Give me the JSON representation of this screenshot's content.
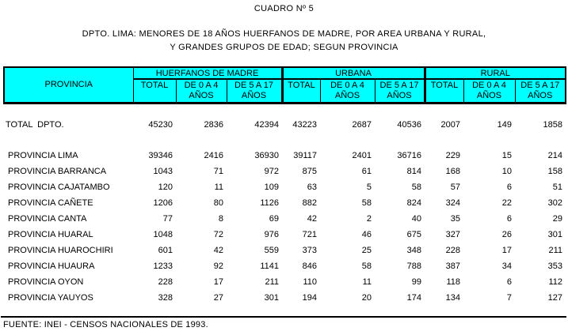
{
  "title": "CUADRO Nº 5",
  "subtitle_line1": "DPTO. LIMA: MENORES DE 18 AÑOS HUERFANOS DE MADRE, POR AREA URBANA Y RURAL,",
  "subtitle_line2": "Y GRANDES GRUPOS DE EDAD; SEGUN PROVINCIA",
  "colors": {
    "header_bg": "#00FFFF",
    "border": "#000000",
    "text": "#000000",
    "page_bg": "#FFFFFF"
  },
  "table": {
    "row_header": "PROVINCIA",
    "groups": [
      {
        "label": "HUERFANOS DE MADRE",
        "columns": [
          "TOTAL",
          "DE 0 A 4\nAÑOS",
          "DE 5 A 17\nAÑOS"
        ]
      },
      {
        "label": "URBANA",
        "columns": [
          "TOTAL",
          "DE 0 A 4\nAÑOS",
          "DE 5 A 17\nAÑOS"
        ]
      },
      {
        "label": "RURAL",
        "columns": [
          "TOTAL",
          "DE 0 A 4\nAÑOS",
          "DE 5 A 17\nAÑOS"
        ]
      }
    ],
    "total_row": {
      "label": "TOTAL  DPTO.",
      "values": [
        45230,
        2836,
        42394,
        43223,
        2687,
        40536,
        2007,
        149,
        1858
      ]
    },
    "rows": [
      {
        "label": "PROVINCIA LIMA",
        "values": [
          39346,
          2416,
          36930,
          39117,
          2401,
          36716,
          229,
          15,
          214
        ]
      },
      {
        "label": "PROVINCIA BARRANCA",
        "values": [
          1043,
          71,
          972,
          875,
          61,
          814,
          168,
          10,
          158
        ]
      },
      {
        "label": "PROVINCIA CAJATAMBO",
        "values": [
          120,
          11,
          109,
          63,
          5,
          58,
          57,
          6,
          51
        ]
      },
      {
        "label": "PROVINCIA CAÑETE",
        "values": [
          1206,
          80,
          1126,
          882,
          58,
          824,
          324,
          22,
          302
        ]
      },
      {
        "label": "PROVINCIA CANTA",
        "values": [
          77,
          8,
          69,
          42,
          2,
          40,
          35,
          6,
          29
        ]
      },
      {
        "label": "PROVINCIA HUARAL",
        "values": [
          1048,
          72,
          976,
          721,
          46,
          675,
          327,
          26,
          301
        ]
      },
      {
        "label": "PROVINCIA HUAROCHIRI",
        "values": [
          601,
          42,
          559,
          373,
          25,
          348,
          228,
          17,
          211
        ]
      },
      {
        "label": "PROVINCIA HUAURA",
        "values": [
          1233,
          92,
          1141,
          846,
          58,
          788,
          387,
          34,
          353
        ]
      },
      {
        "label": "PROVINCIA OYON",
        "values": [
          228,
          17,
          211,
          110,
          11,
          99,
          118,
          6,
          112
        ]
      },
      {
        "label": "PROVINCIA YAUYOS",
        "values": [
          328,
          27,
          301,
          194,
          20,
          174,
          134,
          7,
          127
        ]
      }
    ]
  },
  "footer": "FUENTE: INEI - CENSOS NACIONALES DE 1993."
}
